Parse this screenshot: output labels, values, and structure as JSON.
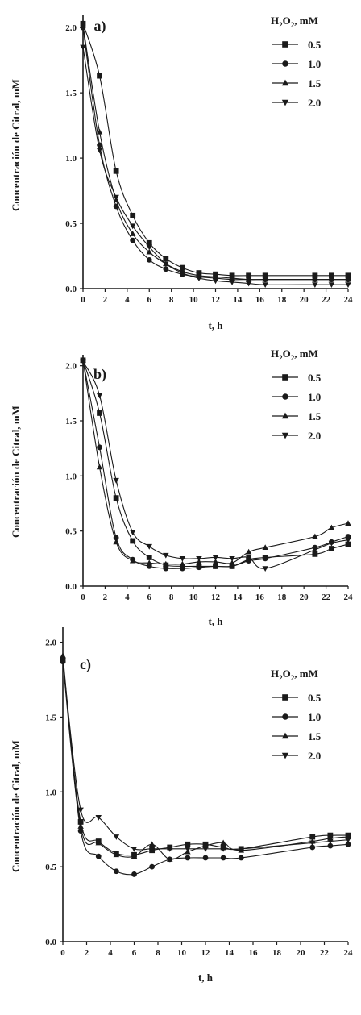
{
  "chart_data": [
    {
      "type": "line",
      "panel_label": "a)",
      "xlabel": "t, h",
      "ylabel": "Concentración de Citral, mM",
      "xlim": [
        0,
        24
      ],
      "ylim": [
        0,
        2.1
      ],
      "xticks": [
        "0",
        "2",
        "4",
        "6",
        "8",
        "10",
        "12",
        "14",
        "16",
        "18",
        "20",
        "22",
        "24"
      ],
      "yticks": [
        "0.0",
        "0.5",
        "1.0",
        "1.5",
        "2.0"
      ],
      "grid": false,
      "legend_position": "top-right",
      "legend_title": {
        "pre": "H",
        "sub1": "2",
        "mid": "O",
        "sub2": "2",
        "post": ", mM"
      },
      "x": [
        0,
        1.5,
        3,
        4.5,
        6,
        7.5,
        9,
        10.5,
        12,
        13.5,
        15,
        16.5,
        21,
        22.5,
        24
      ],
      "series": [
        {
          "name": "0.5",
          "marker": "square",
          "values": [
            2.03,
            1.63,
            0.9,
            0.56,
            0.35,
            0.23,
            0.16,
            0.12,
            0.11,
            0.1,
            0.1,
            0.1,
            0.1,
            0.1,
            0.1
          ]
        },
        {
          "name": "1.0",
          "marker": "circle",
          "values": [
            2.0,
            1.1,
            0.63,
            0.37,
            0.22,
            0.15,
            0.11,
            0.09,
            0.08,
            0.07,
            0.07,
            0.07,
            0.07,
            0.07,
            0.07
          ]
        },
        {
          "name": "1.5",
          "marker": "triangle-up",
          "values": [
            2.02,
            1.2,
            0.68,
            0.42,
            0.28,
            0.19,
            0.13,
            0.1,
            0.09,
            0.08,
            0.07,
            0.07,
            0.07,
            0.07,
            0.07
          ]
        },
        {
          "name": "2.0",
          "marker": "triangle-down",
          "values": [
            1.85,
            1.06,
            0.7,
            0.48,
            0.32,
            0.19,
            0.12,
            0.08,
            0.06,
            0.05,
            0.04,
            0.03,
            0.03,
            0.03,
            0.03
          ]
        }
      ]
    },
    {
      "type": "line",
      "panel_label": "b)",
      "xlabel": "t, h",
      "ylabel": "Concentración de Citral, mM",
      "xlim": [
        0,
        24
      ],
      "ylim": [
        0,
        2.1
      ],
      "xticks": [
        "0",
        "2",
        "4",
        "6",
        "8",
        "10",
        "12",
        "14",
        "16",
        "18",
        "20",
        "22",
        "24"
      ],
      "yticks": [
        "0.0",
        "0.5",
        "1.0",
        "1.5",
        "2.0"
      ],
      "grid": false,
      "legend_position": "top-right",
      "legend_title": {
        "pre": "H",
        "sub1": "2",
        "mid": "O",
        "sub2": "2",
        "post": ", mM"
      },
      "x": [
        0,
        1.5,
        3,
        4.5,
        6,
        7.5,
        9,
        10.5,
        12,
        13.5,
        15,
        16.5,
        21,
        22.5,
        24
      ],
      "series": [
        {
          "name": "0.5",
          "marker": "square",
          "values": [
            2.05,
            1.57,
            0.8,
            0.41,
            0.26,
            0.19,
            0.18,
            0.18,
            0.18,
            0.18,
            0.24,
            0.26,
            0.29,
            0.34,
            0.38
          ]
        },
        {
          "name": "1.0",
          "marker": "circle",
          "values": [
            2.05,
            1.26,
            0.44,
            0.24,
            0.18,
            0.16,
            0.16,
            0.17,
            0.18,
            0.18,
            0.23,
            0.25,
            0.35,
            0.4,
            0.45
          ]
        },
        {
          "name": "1.5",
          "marker": "triangle-up",
          "values": [
            2.05,
            1.08,
            0.4,
            0.23,
            0.21,
            0.2,
            0.2,
            0.22,
            0.22,
            0.21,
            0.31,
            0.35,
            0.45,
            0.53,
            0.57
          ]
        },
        {
          "name": "2.0",
          "marker": "triangle-down",
          "values": [
            2.04,
            1.73,
            0.96,
            0.49,
            0.36,
            0.28,
            0.25,
            0.25,
            0.26,
            0.25,
            0.26,
            0.16,
            0.33,
            0.39,
            0.42
          ]
        }
      ]
    },
    {
      "type": "line",
      "panel_label": "c)",
      "xlabel": "t, h",
      "ylabel": "Concentración de Citral, mM",
      "xlim": [
        0,
        24
      ],
      "ylim": [
        0,
        2.1
      ],
      "xticks": [
        "0",
        "2",
        "4",
        "6",
        "8",
        "10",
        "12",
        "14",
        "16",
        "18",
        "20",
        "22",
        "24"
      ],
      "yticks": [
        "0.0",
        "0.5",
        "1.0",
        "1.5",
        "2.0"
      ],
      "grid": false,
      "legend_position": "top-right",
      "legend_title": {
        "pre": "H",
        "sub1": "2",
        "mid": "O",
        "sub2": "2",
        "post": ", mM"
      },
      "x": [
        0,
        1.5,
        3,
        4.5,
        6,
        7.5,
        9,
        10.5,
        12,
        13.5,
        15,
        21,
        22.5,
        24
      ],
      "series": [
        {
          "name": "0.5",
          "marker": "square",
          "values": [
            1.88,
            0.8,
            0.67,
            0.59,
            0.58,
            0.61,
            0.63,
            0.65,
            0.65,
            0.63,
            0.62,
            0.7,
            0.71,
            0.71
          ]
        },
        {
          "name": "1.0",
          "marker": "circle",
          "values": [
            1.87,
            0.74,
            0.57,
            0.47,
            0.45,
            0.5,
            0.55,
            0.56,
            0.56,
            0.56,
            0.56,
            0.63,
            0.64,
            0.65
          ]
        },
        {
          "name": "1.5",
          "marker": "triangle-up",
          "values": [
            1.91,
            0.77,
            0.66,
            0.58,
            0.57,
            0.65,
            0.55,
            0.6,
            0.64,
            0.66,
            0.61,
            0.67,
            0.69,
            0.7
          ]
        },
        {
          "name": "2.0",
          "marker": "triangle-down",
          "values": [
            1.88,
            0.88,
            0.83,
            0.7,
            0.62,
            0.62,
            0.62,
            0.62,
            0.62,
            0.62,
            0.62,
            0.66,
            0.67,
            0.68
          ]
        }
      ]
    }
  ]
}
